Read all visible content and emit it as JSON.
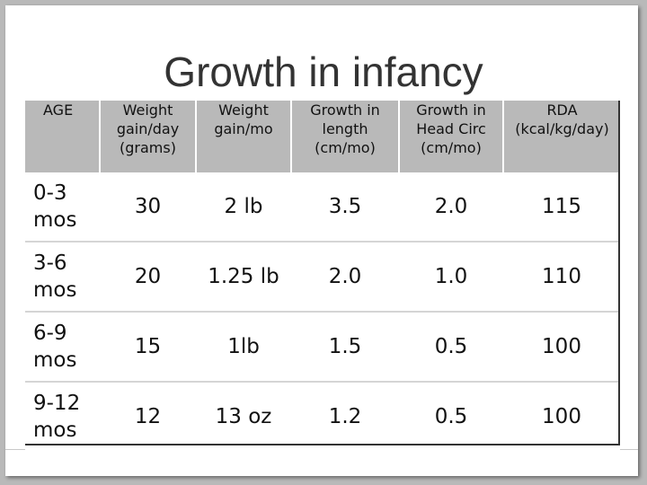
{
  "slide": {
    "title": "Growth in infancy"
  },
  "table": {
    "headers": [
      [
        "AGE"
      ],
      [
        "Weight",
        "gain/day",
        "(grams)"
      ],
      [
        "Weight",
        "gain/mo"
      ],
      [
        "Growth in",
        "length",
        "(cm/mo)"
      ],
      [
        "Growth in",
        "Head Circ",
        "(cm/mo)"
      ],
      [
        "RDA",
        "(kcal/kg/day)"
      ]
    ],
    "rows": [
      {
        "age": [
          "0-3",
          "mos"
        ],
        "cells": [
          "30",
          "2 lb",
          "3.5",
          "2.0",
          "115"
        ]
      },
      {
        "age": [
          "3-6",
          "mos"
        ],
        "cells": [
          "20",
          "1.25 lb",
          "2.0",
          "1.0",
          "110"
        ]
      },
      {
        "age": [
          "6-9",
          "mos"
        ],
        "cells": [
          "15",
          "1lb",
          "1.5",
          "0.5",
          "100"
        ]
      },
      {
        "age": [
          "9-12",
          "mos"
        ],
        "cells": [
          "12",
          "13 oz",
          "1.2",
          "0.5",
          "100"
        ]
      }
    ]
  },
  "colors": {
    "header_background": "#b9b9b9",
    "slide_background": "#ffffff",
    "title_color": "#333333"
  }
}
